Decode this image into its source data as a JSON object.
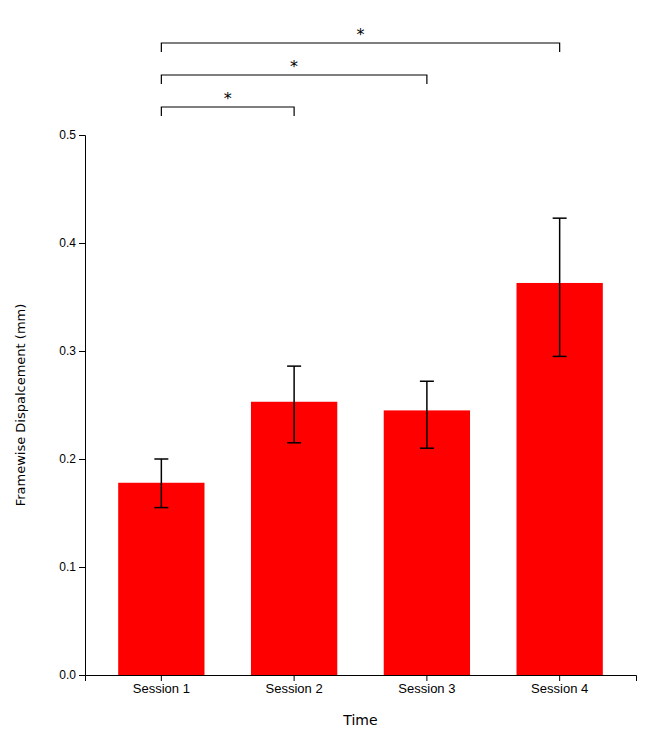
{
  "chart_data": {
    "type": "bar",
    "categories": [
      "Session 1",
      "Session 2",
      "Session 3",
      "Session 4"
    ],
    "values": [
      0.178,
      0.253,
      0.245,
      0.363
    ],
    "errors_upper": [
      0.022,
      0.033,
      0.027,
      0.06
    ],
    "errors_lower": [
      0.023,
      0.038,
      0.035,
      0.068
    ],
    "color": "#FF0000",
    "xlabel": "Time",
    "ylabel": "Framewise Dispalcement (mm)",
    "ylim": [
      0,
      0.5
    ],
    "yticks": [
      {
        "value": 0,
        "label": "0.0"
      },
      0.1,
      0.2,
      0.3,
      0.4,
      0.5
    ],
    "grid": false,
    "annotations": [
      {
        "text": "*",
        "from": "Session 1",
        "to": "Session 2"
      },
      {
        "text": "*",
        "from": "Session 1",
        "to": "Session 3"
      },
      {
        "text": "*",
        "from": "Session 1",
        "to": "Session 4"
      }
    ]
  }
}
